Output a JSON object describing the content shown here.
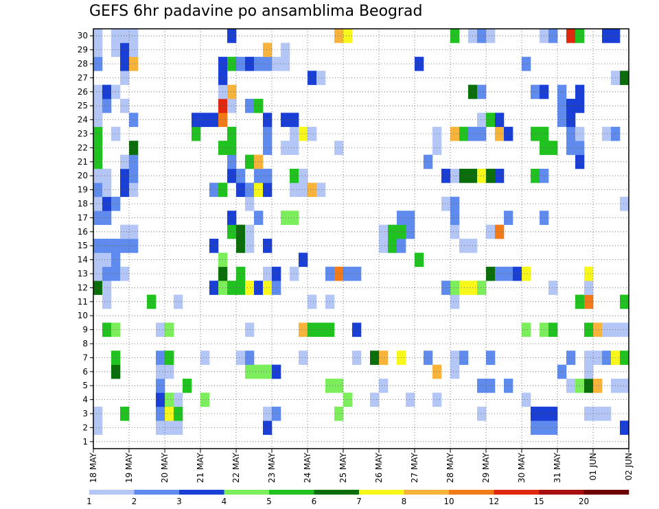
{
  "chart_data": {
    "type": "heatmap",
    "title": "GEFS 6hr padavine po ansamblima Beograd",
    "xlabel": "",
    "ylabel": "",
    "x_ticks": [
      "18 MAY",
      "19 MAY",
      "20 MAY",
      "21 MAY",
      "22 MAY",
      "23 MAY",
      "24 MAY",
      "25 MAY",
      "26 MAY",
      "27 MAY",
      "28 MAY",
      "29 MAY",
      "30 MAY",
      "31 MAY",
      "01 JUN",
      "02 JUN"
    ],
    "y_ticks": [
      1,
      2,
      3,
      4,
      5,
      6,
      7,
      8,
      9,
      10,
      11,
      12,
      13,
      14,
      15,
      16,
      17,
      18,
      19,
      20,
      21,
      22,
      23,
      24,
      25,
      26,
      27,
      28,
      29,
      30
    ],
    "time_step_hours": 6,
    "num_steps": 60,
    "members": 30,
    "grid": "dotted",
    "colorbar": {
      "position": "bottom",
      "tick_labels": [
        "1",
        "2",
        "3",
        "4",
        "5",
        "6",
        "7",
        "8",
        "10",
        "12",
        "15",
        "20"
      ],
      "colors": [
        "#b3c6f5",
        "#5f8bee",
        "#1a3fd6",
        "#7cee5c",
        "#1fc21f",
        "#0a6e0a",
        "#f7f71a",
        "#f8b33a",
        "#f27a18",
        "#e0280f",
        "#a80f0f",
        "#6e0000"
      ]
    },
    "values_mm": {
      "2": [
        [
          0,
          0
        ],
        [
          7,
          1
        ],
        [
          8,
          1
        ],
        [
          9,
          1
        ],
        [
          19,
          3
        ],
        [
          49,
          2
        ],
        [
          50,
          2
        ],
        [
          51,
          2
        ],
        [
          59,
          3
        ]
      ],
      "3": [
        [
          0,
          1
        ],
        [
          3,
          5
        ],
        [
          7,
          2
        ],
        [
          8,
          7
        ],
        [
          9,
          5
        ],
        [
          19,
          1
        ],
        [
          20,
          2
        ],
        [
          27,
          4
        ],
        [
          43,
          1
        ],
        [
          49,
          3
        ],
        [
          50,
          3
        ],
        [
          51,
          3
        ],
        [
          55,
          1
        ],
        [
          56,
          1
        ],
        [
          57,
          1
        ]
      ],
      "4": [
        [
          7,
          3
        ],
        [
          8,
          4
        ],
        [
          9,
          1
        ],
        [
          12,
          4
        ],
        [
          28,
          4
        ],
        [
          31,
          1
        ],
        [
          35,
          1
        ],
        [
          38,
          0
        ],
        [
          48,
          1
        ]
      ],
      "5": [
        [
          7,
          2
        ],
        [
          10,
          5
        ],
        [
          26,
          4
        ],
        [
          27,
          4
        ],
        [
          32,
          1
        ],
        [
          43,
          2
        ],
        [
          44,
          2
        ],
        [
          46,
          2
        ],
        [
          53,
          1
        ],
        [
          54,
          4
        ],
        [
          55,
          6
        ],
        [
          56,
          9
        ],
        [
          58,
          1
        ],
        [
          59,
          1
        ]
      ],
      "6": [
        [
          2,
          6
        ],
        [
          7,
          1
        ],
        [
          8,
          1
        ],
        [
          17,
          4
        ],
        [
          18,
          4
        ],
        [
          19,
          4
        ],
        [
          20,
          3
        ],
        [
          38,
          8
        ],
        [
          40,
          1
        ],
        [
          52,
          2
        ],
        [
          55,
          1
        ]
      ],
      "7": [
        [
          2,
          5
        ],
        [
          7,
          2
        ],
        [
          8,
          1
        ],
        [
          8,
          5
        ],
        [
          12,
          1
        ],
        [
          16,
          1
        ],
        [
          17,
          2
        ],
        [
          23,
          1
        ],
        [
          29,
          1
        ],
        [
          31,
          6
        ],
        [
          32,
          8
        ],
        [
          34,
          7
        ],
        [
          37,
          2
        ],
        [
          40,
          1
        ],
        [
          41,
          2
        ],
        [
          44,
          2
        ],
        [
          53,
          2
        ],
        [
          55,
          1
        ],
        [
          56,
          1
        ],
        [
          57,
          2
        ],
        [
          58,
          7
        ],
        [
          59,
          5
        ]
      ],
      "9": [
        [
          1,
          5
        ],
        [
          2,
          4
        ],
        [
          7,
          1
        ],
        [
          8,
          4
        ],
        [
          17,
          1
        ],
        [
          23,
          9
        ],
        [
          24,
          5
        ],
        [
          25,
          5
        ],
        [
          26,
          5
        ],
        [
          29,
          3
        ],
        [
          48,
          4
        ],
        [
          50,
          4
        ],
        [
          51,
          5
        ],
        [
          55,
          5
        ],
        [
          56,
          8
        ],
        [
          57,
          1
        ],
        [
          58,
          1
        ],
        [
          59,
          1
        ]
      ],
      "11": [
        [
          1,
          1
        ],
        [
          6,
          5
        ],
        [
          9,
          1
        ],
        [
          24,
          1
        ],
        [
          26,
          1
        ],
        [
          40,
          1
        ],
        [
          54,
          5
        ],
        [
          55,
          10
        ],
        [
          59,
          5
        ]
      ],
      "12": [
        [
          0,
          6
        ],
        [
          1,
          1
        ],
        [
          13,
          3
        ],
        [
          14,
          4
        ],
        [
          15,
          5
        ],
        [
          16,
          5
        ],
        [
          17,
          7
        ],
        [
          18,
          3
        ],
        [
          19,
          7
        ],
        [
          20,
          2
        ],
        [
          39,
          2
        ],
        [
          40,
          4
        ],
        [
          41,
          7
        ],
        [
          42,
          7
        ],
        [
          43,
          4
        ],
        [
          51,
          1
        ],
        [
          55,
          1
        ]
      ],
      "13": [
        [
          0,
          1
        ],
        [
          1,
          2
        ],
        [
          2,
          2
        ],
        [
          3,
          1
        ],
        [
          14,
          6
        ],
        [
          16,
          5
        ],
        [
          19,
          1
        ],
        [
          20,
          3
        ],
        [
          22,
          1
        ],
        [
          26,
          2
        ],
        [
          27,
          10
        ],
        [
          28,
          2
        ],
        [
          29,
          2
        ],
        [
          44,
          6
        ],
        [
          45,
          2
        ],
        [
          46,
          2
        ],
        [
          47,
          3
        ],
        [
          48,
          7
        ],
        [
          55,
          7
        ]
      ],
      "14": [
        [
          0,
          1
        ],
        [
          1,
          1
        ],
        [
          2,
          2
        ],
        [
          14,
          4
        ],
        [
          23,
          3
        ],
        [
          36,
          5
        ]
      ],
      "15": [
        [
          0,
          2
        ],
        [
          1,
          2
        ],
        [
          2,
          2
        ],
        [
          3,
          2
        ],
        [
          4,
          2
        ],
        [
          13,
          3
        ],
        [
          16,
          6
        ],
        [
          17,
          1
        ],
        [
          19,
          3
        ],
        [
          32,
          1
        ],
        [
          33,
          5
        ],
        [
          34,
          2
        ],
        [
          41,
          1
        ],
        [
          42,
          1
        ]
      ],
      "16": [
        [
          3,
          1
        ],
        [
          4,
          1
        ],
        [
          15,
          5
        ],
        [
          16,
          6
        ],
        [
          17,
          1
        ],
        [
          32,
          1
        ],
        [
          33,
          5
        ],
        [
          34,
          5
        ],
        [
          35,
          2
        ],
        [
          40,
          1
        ],
        [
          44,
          1
        ],
        [
          45,
          10
        ]
      ],
      "17": [
        [
          0,
          2
        ],
        [
          1,
          2
        ],
        [
          15,
          3
        ],
        [
          18,
          2
        ],
        [
          21,
          4
        ],
        [
          22,
          4
        ],
        [
          34,
          2
        ],
        [
          35,
          2
        ],
        [
          40,
          2
        ],
        [
          46,
          2
        ],
        [
          50,
          2
        ]
      ],
      "18": [
        [
          0,
          1
        ],
        [
          1,
          3
        ],
        [
          2,
          2
        ],
        [
          17,
          1
        ],
        [
          39,
          1
        ],
        [
          40,
          2
        ],
        [
          59,
          1
        ]
      ],
      "19": [
        [
          0,
          2
        ],
        [
          1,
          1
        ],
        [
          3,
          3
        ],
        [
          4,
          1
        ],
        [
          13,
          2
        ],
        [
          14,
          5
        ],
        [
          16,
          3
        ],
        [
          17,
          2
        ],
        [
          18,
          7
        ],
        [
          19,
          3
        ],
        [
          22,
          1
        ],
        [
          23,
          1
        ],
        [
          24,
          9
        ],
        [
          25,
          1
        ]
      ],
      "20": [
        [
          0,
          1
        ],
        [
          1,
          1
        ],
        [
          3,
          3
        ],
        [
          4,
          2
        ],
        [
          15,
          3
        ],
        [
          16,
          2
        ],
        [
          18,
          2
        ],
        [
          19,
          2
        ],
        [
          22,
          5
        ],
        [
          23,
          1
        ],
        [
          39,
          3
        ],
        [
          40,
          1
        ],
        [
          41,
          6
        ],
        [
          42,
          6
        ],
        [
          43,
          7
        ],
        [
          44,
          6
        ],
        [
          45,
          3
        ],
        [
          49,
          5
        ],
        [
          50,
          2
        ]
      ],
      "21": [
        [
          0,
          5
        ],
        [
          3,
          1
        ],
        [
          4,
          2
        ],
        [
          15,
          2
        ],
        [
          17,
          5
        ],
        [
          18,
          8
        ],
        [
          37,
          2
        ],
        [
          54,
          3
        ]
      ],
      "22": [
        [
          0,
          5
        ],
        [
          4,
          6
        ],
        [
          14,
          5
        ],
        [
          15,
          5
        ],
        [
          19,
          2
        ],
        [
          21,
          1
        ],
        [
          22,
          1
        ],
        [
          27,
          1
        ],
        [
          38,
          1
        ],
        [
          50,
          5
        ],
        [
          51,
          5
        ],
        [
          53,
          2
        ],
        [
          54,
          2
        ]
      ],
      "23": [
        [
          0,
          5
        ],
        [
          2,
          1
        ],
        [
          11,
          5
        ],
        [
          15,
          5
        ],
        [
          19,
          2
        ],
        [
          22,
          1
        ],
        [
          23,
          7
        ],
        [
          24,
          1
        ],
        [
          38,
          1
        ],
        [
          40,
          8
        ],
        [
          41,
          5
        ],
        [
          42,
          2
        ],
        [
          43,
          2
        ],
        [
          45,
          9
        ],
        [
          46,
          3
        ],
        [
          49,
          5
        ],
        [
          50,
          5
        ],
        [
          53,
          2
        ],
        [
          54,
          1
        ],
        [
          57,
          1
        ],
        [
          58,
          2
        ]
      ],
      "24": [
        [
          0,
          1
        ],
        [
          4,
          2
        ],
        [
          11,
          3
        ],
        [
          12,
          3
        ],
        [
          13,
          3
        ],
        [
          14,
          11
        ],
        [
          19,
          3
        ],
        [
          21,
          3
        ],
        [
          22,
          3
        ],
        [
          43,
          1
        ],
        [
          44,
          5
        ],
        [
          45,
          3
        ],
        [
          52,
          2
        ],
        [
          53,
          3
        ]
      ],
      "25": [
        [
          0,
          1
        ],
        [
          1,
          2
        ],
        [
          3,
          1
        ],
        [
          14,
          12
        ],
        [
          15,
          1
        ],
        [
          17,
          2
        ],
        [
          18,
          5
        ],
        [
          52,
          2
        ],
        [
          53,
          3
        ],
        [
          54,
          3
        ]
      ],
      "26": [
        [
          0,
          1
        ],
        [
          1,
          3
        ],
        [
          2,
          1
        ],
        [
          14,
          1
        ],
        [
          15,
          9
        ],
        [
          42,
          6
        ],
        [
          43,
          2
        ],
        [
          49,
          2
        ],
        [
          50,
          3
        ],
        [
          52,
          2
        ],
        [
          54,
          3
        ]
      ],
      "27": [
        [
          3,
          1
        ],
        [
          14,
          3
        ],
        [
          24,
          3
        ],
        [
          25,
          1
        ],
        [
          58,
          1
        ],
        [
          59,
          6
        ]
      ],
      "28": [
        [
          0,
          2
        ],
        [
          3,
          3
        ],
        [
          4,
          9
        ],
        [
          14,
          3
        ],
        [
          15,
          5
        ],
        [
          16,
          2
        ],
        [
          17,
          3
        ],
        [
          18,
          2
        ],
        [
          19,
          2
        ],
        [
          20,
          1
        ],
        [
          21,
          1
        ],
        [
          36,
          3
        ],
        [
          48,
          2
        ]
      ],
      "29": [
        [
          0,
          1
        ],
        [
          2,
          1
        ],
        [
          3,
          3
        ],
        [
          4,
          1
        ],
        [
          19,
          9
        ],
        [
          21,
          1
        ]
      ],
      "30": [
        [
          0,
          1
        ],
        [
          2,
          1
        ],
        [
          3,
          1
        ],
        [
          4,
          1
        ],
        [
          15,
          3
        ],
        [
          27,
          8
        ],
        [
          28,
          7
        ],
        [
          40,
          5
        ],
        [
          42,
          1
        ],
        [
          43,
          2
        ],
        [
          44,
          1
        ],
        [
          50,
          1
        ],
        [
          51,
          2
        ],
        [
          53,
          12
        ],
        [
          54,
          5
        ],
        [
          57,
          3
        ],
        [
          58,
          3
        ]
      ]
    }
  }
}
